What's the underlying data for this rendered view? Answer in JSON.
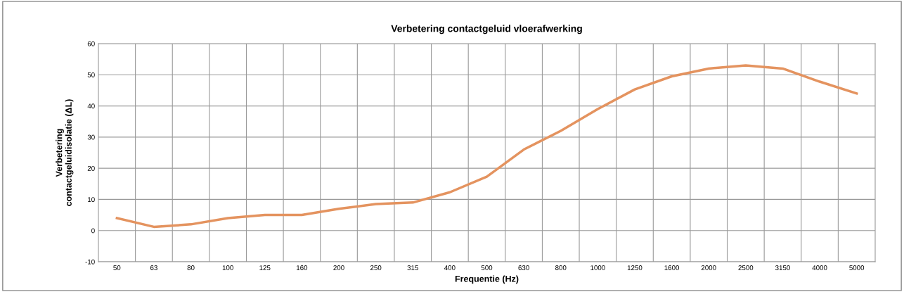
{
  "chart_data": {
    "type": "line",
    "title": "Verbetering contactgeluid vloerafwerking",
    "xlabel": "Frequentie (Hz)",
    "ylabel": "Verbetering\ncontactgeluidisolatie (ΔL)",
    "categories": [
      "50",
      "63",
      "80",
      "100",
      "125",
      "160",
      "200",
      "250",
      "315",
      "400",
      "500",
      "630",
      "800",
      "1000",
      "1250",
      "1600",
      "2000",
      "2500",
      "3150",
      "4000",
      "5000"
    ],
    "series": [
      {
        "color": "#e4935f",
        "values": [
          4,
          1.2,
          2,
          4,
          5,
          5,
          7,
          8.5,
          9,
          12.3,
          17.3,
          26,
          32,
          39,
          45.3,
          49.5,
          52,
          53,
          52,
          47.8,
          44
        ]
      }
    ],
    "ylim": [
      -10,
      60
    ],
    "yticks": [
      -10,
      0,
      10,
      20,
      30,
      40,
      50,
      60
    ],
    "grid": true,
    "marker": "none",
    "line_style": "solid"
  }
}
